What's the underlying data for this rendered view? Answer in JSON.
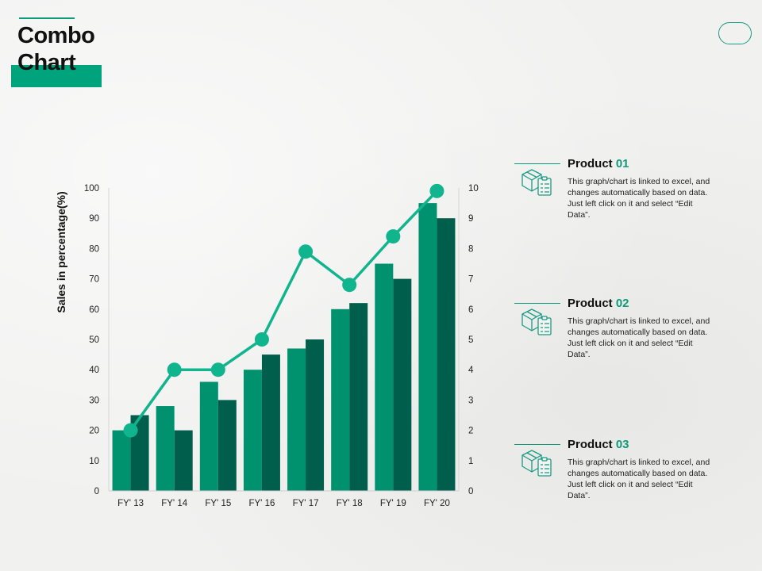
{
  "slide": {
    "title": "Combo Chart"
  },
  "colors": {
    "accent": "#00a47c",
    "bar_series_1": "#00916f",
    "bar_series_2": "#005e4c",
    "line": "#10b48d",
    "outline": "#1a9b84"
  },
  "chart_data": {
    "type": "bar",
    "categories": [
      "FY' 13",
      "FY' 14",
      "FY' 15",
      "FY' 16",
      "FY' 17",
      "FY' 18",
      "FY' 19",
      "FY' 20"
    ],
    "series": [
      {
        "type": "bar",
        "axis": "left",
        "values": [
          20,
          28,
          36,
          40,
          47,
          60,
          75,
          95
        ]
      },
      {
        "type": "bar",
        "axis": "left",
        "values": [
          25,
          20,
          30,
          45,
          50,
          62,
          70,
          90
        ]
      },
      {
        "type": "line",
        "axis": "right",
        "values": [
          2,
          4,
          4,
          5,
          7.9,
          6.8,
          8.4,
          9.9
        ]
      }
    ],
    "ylabel": "Sales in percentage(%)",
    "ylim": [
      0,
      100
    ],
    "yticks": [
      0,
      10,
      20,
      30,
      40,
      50,
      60,
      70,
      80,
      90,
      100
    ],
    "y2lim": [
      0,
      10
    ],
    "y2ticks": [
      0,
      1,
      2,
      3,
      4,
      5,
      6,
      7,
      8,
      9,
      10
    ],
    "grid": false,
    "legend": "none"
  },
  "products": [
    {
      "label": "Product ",
      "number": "01",
      "icon": "box-clipboard-icon",
      "text": "This graph/chart is linked to excel, and changes automatically based on data. Just left click on it and select “Edit Data”."
    },
    {
      "label": "Product ",
      "number": "02",
      "icon": "box-clipboard-icon",
      "text": "This graph/chart is linked to excel, and changes automatically based on data. Just left click on it and select “Edit Data”."
    },
    {
      "label": "Product ",
      "number": "03",
      "icon": "box-clipboard-icon",
      "text": "This graph/chart is linked to excel, and changes automatically based on data. Just left click on it and select “Edit Data”."
    }
  ]
}
